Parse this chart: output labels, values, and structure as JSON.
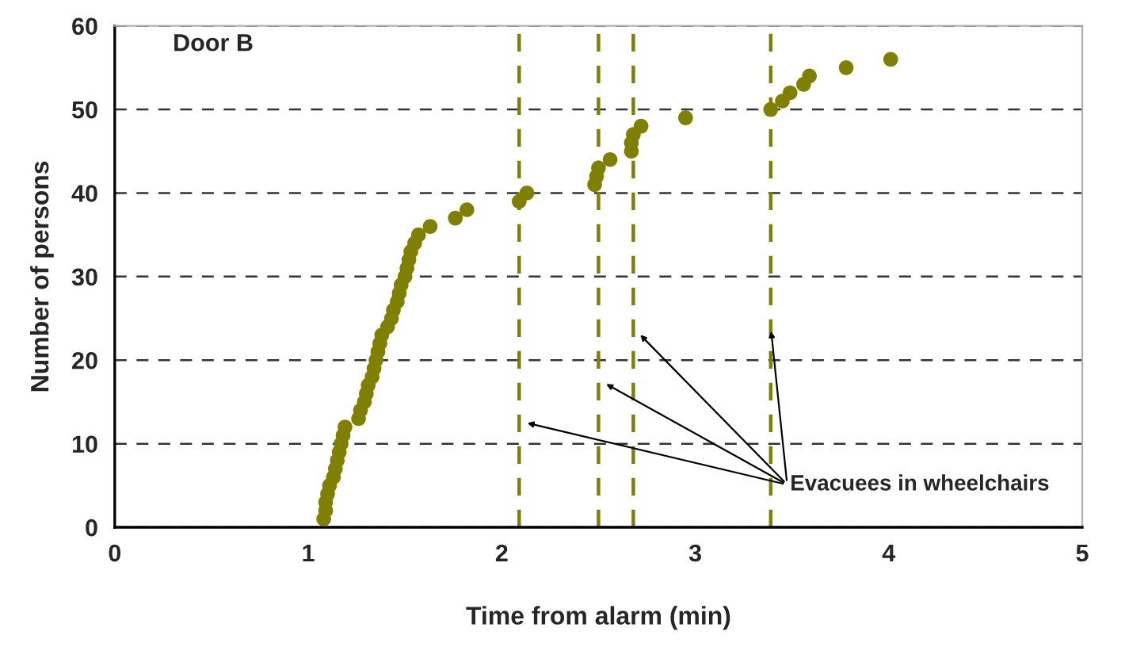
{
  "chart_data": {
    "type": "scatter",
    "title": "Door B",
    "xlabel": "Time from alarm (min)",
    "ylabel": "Number of persons",
    "x": [
      1.08,
      1.09,
      1.09,
      1.1,
      1.11,
      1.13,
      1.14,
      1.15,
      1.16,
      1.17,
      1.18,
      1.19,
      1.26,
      1.27,
      1.29,
      1.3,
      1.31,
      1.33,
      1.34,
      1.35,
      1.36,
      1.37,
      1.38,
      1.41,
      1.43,
      1.44,
      1.46,
      1.47,
      1.48,
      1.5,
      1.51,
      1.52,
      1.53,
      1.55,
      1.57,
      1.63,
      1.76,
      1.82,
      2.09,
      2.13,
      2.48,
      2.49,
      2.5,
      2.56,
      2.67,
      2.67,
      2.68,
      2.72,
      2.95,
      3.39,
      3.45,
      3.49,
      3.56,
      3.59,
      3.78,
      4.01
    ],
    "series": [
      {
        "color": "#808000",
        "values": [
          1,
          2,
          3,
          4,
          5,
          6,
          7,
          8,
          9,
          10,
          11,
          12,
          13,
          14,
          15,
          16,
          17,
          18,
          19,
          20,
          21,
          22,
          23,
          24,
          25,
          26,
          27,
          28,
          29,
          30,
          31,
          32,
          33,
          34,
          35,
          36,
          37,
          38,
          39,
          40,
          41,
          42,
          43,
          44,
          45,
          46,
          47,
          48,
          49,
          50,
          51,
          52,
          53,
          54,
          55,
          56
        ]
      }
    ],
    "marker": "circle",
    "xlim": [
      0,
      5
    ],
    "xticks": [
      0,
      1,
      2,
      3,
      4,
      5
    ],
    "ylim": [
      0,
      60
    ],
    "yticks": [
      0,
      10,
      20,
      30,
      40,
      50,
      60
    ],
    "grid": "y",
    "ref_lines": [
      {
        "axis": "x",
        "value": 2.09,
        "color": "#808000",
        "line_style": "dashed"
      },
      {
        "axis": "x",
        "value": 2.5,
        "color": "#808000",
        "line_style": "dashed"
      },
      {
        "axis": "x",
        "value": 2.68,
        "color": "#808000",
        "line_style": "dashed"
      },
      {
        "axis": "x",
        "value": 3.39,
        "color": "#808000",
        "line_style": "dashed"
      }
    ],
    "annotations": [
      {
        "text": "Evacuees in wheelchairs",
        "x": 3.39,
        "y": 24
      }
    ]
  }
}
